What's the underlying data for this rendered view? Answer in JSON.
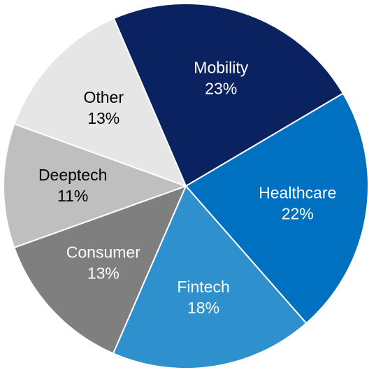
{
  "chart_data": {
    "type": "pie",
    "categories": [
      "Mobility",
      "Healthcare",
      "Fintech",
      "Consumer",
      "Deeptech",
      "Other"
    ],
    "values": [
      23,
      22,
      18,
      13,
      11,
      13
    ],
    "value_labels": [
      "23%",
      "22%",
      "18%",
      "13%",
      "11%",
      "13%"
    ],
    "colors": [
      "#0b2260",
      "#0070c0",
      "#2e90cc",
      "#7f7f7f",
      "#bfbfbf",
      "#e6e6e6"
    ],
    "label_colors": [
      "#ffffff",
      "#ffffff",
      "#ffffff",
      "#ffffff",
      "#000000",
      "#000000"
    ]
  }
}
